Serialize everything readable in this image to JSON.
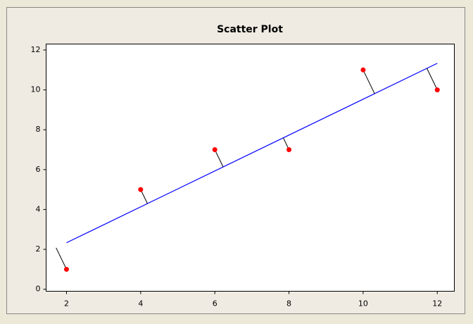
{
  "chart_data": {
    "type": "scatter",
    "title": "Scatter Plot",
    "x": [
      2,
      4,
      6,
      8,
      10,
      12
    ],
    "values": [
      1,
      5,
      7,
      7,
      11,
      10
    ],
    "color": "#ff0000",
    "fit_line": {
      "x": [
        2,
        12
      ],
      "values": [
        2.333,
        11.333
      ],
      "color": "#0000ff"
    },
    "residual_color": "#000000",
    "xlim": [
      1.45,
      12.46
    ],
    "ylim": [
      -0.1,
      12.3
    ],
    "xticks": [
      2,
      4,
      6,
      8,
      10,
      12
    ],
    "yticks": [
      0,
      2,
      4,
      6,
      8,
      10,
      12
    ]
  }
}
